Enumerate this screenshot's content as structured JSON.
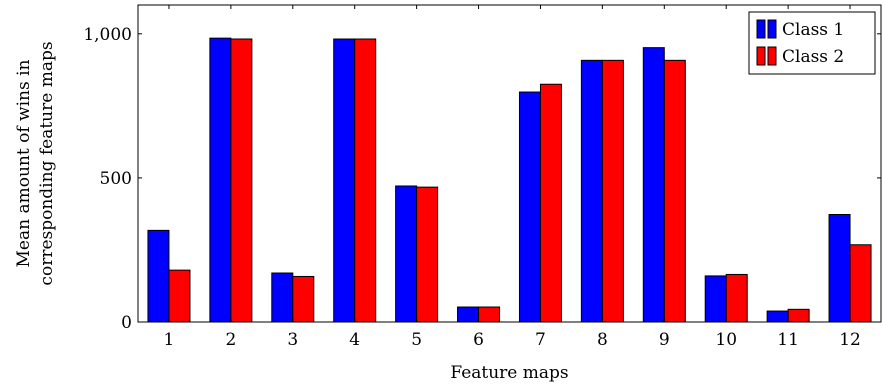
{
  "chart_data": {
    "type": "bar",
    "xlabel": "Feature maps",
    "ylabel": [
      "Mean amount of wins in",
      "corresponding feature maps"
    ],
    "categories": [
      "1",
      "2",
      "3",
      "4",
      "5",
      "6",
      "7",
      "8",
      "9",
      "10",
      "11",
      "12"
    ],
    "series": [
      {
        "name": "Class 1",
        "color": "#0000ff",
        "values": [
          318,
          985,
          170,
          982,
          472,
          52,
          798,
          908,
          952,
          160,
          38,
          373
        ]
      },
      {
        "name": "Class 2",
        "color": "#ff0000",
        "values": [
          180,
          982,
          158,
          982,
          468,
          52,
          825,
          908,
          908,
          165,
          44,
          268
        ]
      }
    ],
    "ylim": [
      0,
      1100
    ],
    "yticks": [
      0,
      500,
      1000
    ],
    "ytick_labels": [
      "0",
      "500",
      "1,000"
    ],
    "legend_position": "top-right",
    "grid": false
  }
}
